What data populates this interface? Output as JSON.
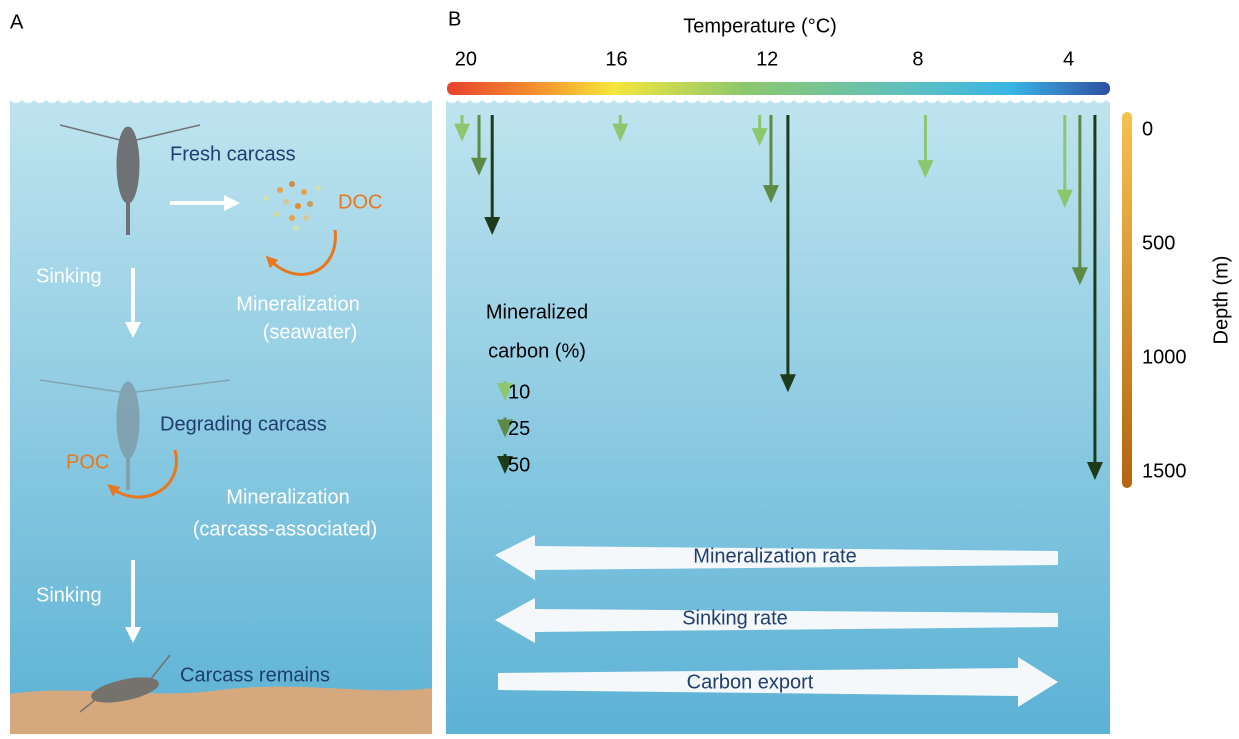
{
  "panel_a": {
    "label": "A",
    "fresh_carcass": "Fresh carcass",
    "doc": "DOC",
    "sinking_1": "Sinking",
    "mineralization_seawater": [
      "Mineralization",
      "(seawater)"
    ],
    "degrading_carcass": "Degrading carcass",
    "poc": "POC",
    "mineralization_carcass": [
      "Mineralization",
      "(carcass-associated)"
    ],
    "sinking_2": "Sinking",
    "carcass_remains": "Carcass remains"
  },
  "panel_b": {
    "label": "B",
    "temperature_axis": {
      "title": "Temperature (°C)",
      "lim": [
        20.5,
        2.9
      ],
      "ticks": [
        20,
        16,
        12,
        8,
        4
      ]
    },
    "depth_axis": {
      "title": "Depth (m)",
      "lim": [
        -80,
        1570
      ],
      "ticks": [
        0,
        500,
        1000,
        1500
      ]
    },
    "legend": {
      "title": [
        "Mineralized",
        "carbon (%)"
      ],
      "levels": [
        {
          "value": 10,
          "color": "#8cc76e"
        },
        {
          "value": 25,
          "color": "#5d8a45"
        },
        {
          "value": 50,
          "color": "#1d3a1b"
        }
      ]
    },
    "arrows": [
      {
        "carbon": 10,
        "temperature": 20.1,
        "depth": 50
      },
      {
        "carbon": 25,
        "temperature": 19.65,
        "depth": 200
      },
      {
        "carbon": 50,
        "temperature": 19.3,
        "depth": 460
      },
      {
        "carbon": 10,
        "temperature": 15.9,
        "depth": 50
      },
      {
        "carbon": 10,
        "temperature": 12.2,
        "depth": 70
      },
      {
        "carbon": 25,
        "temperature": 11.9,
        "depth": 320
      },
      {
        "carbon": 50,
        "temperature": 11.45,
        "depth": 1150
      },
      {
        "carbon": 10,
        "temperature": 7.8,
        "depth": 210
      },
      {
        "carbon": 10,
        "temperature": 4.1,
        "depth": 340
      },
      {
        "carbon": 25,
        "temperature": 3.7,
        "depth": 680
      },
      {
        "carbon": 50,
        "temperature": 3.3,
        "depth": 1535
      }
    ],
    "trends": {
      "mineralization_rate": "Mineralization rate",
      "sinking_rate": "Sinking rate",
      "carbon_export": "Carbon export"
    }
  }
}
